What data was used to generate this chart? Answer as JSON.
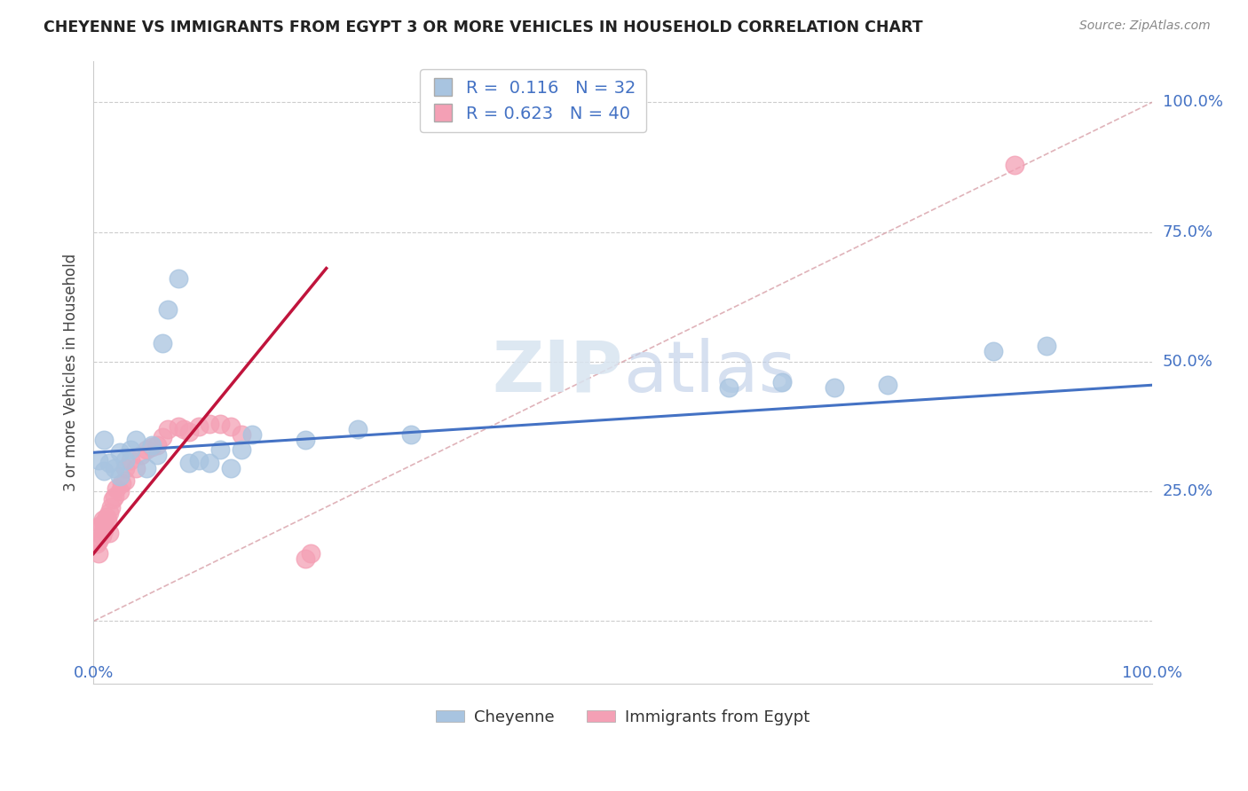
{
  "title": "CHEYENNE VS IMMIGRANTS FROM EGYPT 3 OR MORE VEHICLES IN HOUSEHOLD CORRELATION CHART",
  "source": "Source: ZipAtlas.com",
  "ylabel": "3 or more Vehicles in Household",
  "legend_label1": "Cheyenne",
  "legend_label2": "Immigrants from Egypt",
  "R1": "0.116",
  "N1": "32",
  "R2": "0.623",
  "N2": "40",
  "color_blue": "#A8C4E0",
  "color_pink": "#F4A0B5",
  "line_blue": "#4472C4",
  "line_pink": "#C0143C",
  "line_diag_color": "#D8A0A8",
  "watermark_color": "#D8E4F0",
  "cheyenne_x": [
    0.005,
    0.01,
    0.01,
    0.015,
    0.02,
    0.025,
    0.025,
    0.03,
    0.035,
    0.04,
    0.05,
    0.055,
    0.06,
    0.065,
    0.07,
    0.08,
    0.09,
    0.1,
    0.11,
    0.12,
    0.13,
    0.14,
    0.15,
    0.2,
    0.25,
    0.3,
    0.6,
    0.65,
    0.7,
    0.75,
    0.85,
    0.9
  ],
  "cheyenne_y": [
    0.31,
    0.29,
    0.35,
    0.305,
    0.295,
    0.325,
    0.28,
    0.31,
    0.33,
    0.35,
    0.295,
    0.34,
    0.32,
    0.535,
    0.6,
    0.66,
    0.305,
    0.31,
    0.305,
    0.33,
    0.295,
    0.33,
    0.36,
    0.35,
    0.37,
    0.36,
    0.45,
    0.46,
    0.45,
    0.455,
    0.52,
    0.53
  ],
  "egypt_x": [
    0.001,
    0.003,
    0.005,
    0.005,
    0.007,
    0.008,
    0.009,
    0.01,
    0.01,
    0.012,
    0.013,
    0.015,
    0.015,
    0.017,
    0.018,
    0.02,
    0.022,
    0.025,
    0.027,
    0.03,
    0.03,
    0.035,
    0.04,
    0.045,
    0.05,
    0.055,
    0.06,
    0.065,
    0.07,
    0.08,
    0.085,
    0.09,
    0.1,
    0.11,
    0.12,
    0.13,
    0.14,
    0.2,
    0.205,
    0.87
  ],
  "egypt_y": [
    0.18,
    0.15,
    0.155,
    0.13,
    0.185,
    0.165,
    0.195,
    0.175,
    0.19,
    0.2,
    0.195,
    0.21,
    0.17,
    0.22,
    0.235,
    0.24,
    0.255,
    0.25,
    0.265,
    0.27,
    0.295,
    0.31,
    0.295,
    0.32,
    0.33,
    0.335,
    0.34,
    0.355,
    0.37,
    0.375,
    0.37,
    0.365,
    0.375,
    0.38,
    0.38,
    0.375,
    0.36,
    0.12,
    0.13,
    0.88
  ],
  "ytick_vals": [
    0.0,
    0.25,
    0.5,
    0.75,
    1.0
  ],
  "ytick_labels": [
    "",
    "25.0%",
    "50.0%",
    "75.0%",
    "100.0%"
  ],
  "xlim": [
    0.0,
    1.0
  ],
  "ylim": [
    -0.12,
    1.08
  ]
}
